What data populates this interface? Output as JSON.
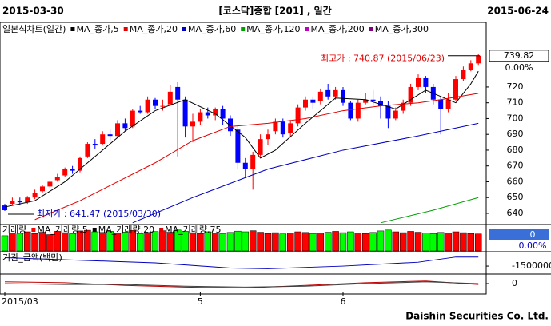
{
  "chart_data": {
    "type": "candlestick",
    "date_start": "2015-03-30",
    "title": "[코스닥]종합 [201] , 일간",
    "date_end": "2015-06-24",
    "chart_label": "일본식차트(일간)",
    "open": [
      645,
      646,
      648,
      647,
      650,
      654,
      657,
      661,
      664,
      668,
      667,
      676,
      684,
      684,
      690,
      689,
      697,
      695,
      705,
      704,
      712,
      708,
      709,
      720,
      712,
      695,
      698,
      704,
      702,
      706,
      700,
      693,
      672,
      668,
      677,
      687,
      692,
      698,
      691,
      697,
      707,
      712,
      711,
      718,
      714,
      718,
      710,
      700,
      710,
      712,
      711,
      708,
      700,
      705,
      710,
      720,
      726,
      720,
      712,
      706,
      712,
      725,
      731,
      735
    ],
    "high": [
      646,
      650,
      650,
      651,
      655,
      658,
      661,
      665,
      669,
      670,
      676,
      685,
      687,
      692,
      693,
      699,
      700,
      706,
      708,
      714,
      713,
      712,
      721,
      723,
      714,
      703,
      706,
      707,
      707,
      708,
      702,
      695,
      675,
      679,
      690,
      693,
      700,
      700,
      699,
      709,
      714,
      714,
      719,
      722,
      720,
      720,
      711,
      712,
      716,
      718,
      714,
      711,
      707,
      712,
      722,
      728,
      727,
      722,
      714,
      716,
      727,
      733,
      737,
      740.87
    ],
    "low": [
      641.47,
      645,
      645,
      646,
      649,
      653,
      656,
      660,
      663,
      665,
      666,
      675,
      681,
      683,
      686,
      688,
      692,
      694,
      703,
      703,
      706,
      705,
      708,
      676,
      688,
      685,
      696,
      700,
      699,
      696,
      689,
      668,
      663,
      655,
      676,
      683,
      690,
      688,
      688,
      695,
      705,
      706,
      709,
      712,
      712,
      708,
      699,
      698,
      709,
      708,
      700,
      694,
      699,
      703,
      708,
      718,
      716,
      709,
      690,
      704,
      711,
      724,
      730,
      734
    ],
    "close": [
      642,
      648,
      647,
      650,
      653,
      657,
      660,
      663,
      668,
      667,
      675,
      684,
      683,
      690,
      689,
      697,
      694,
      705,
      704,
      712,
      708,
      708,
      717,
      712,
      695,
      698,
      704,
      702,
      706,
      700,
      692,
      672,
      668,
      677,
      687,
      690,
      698,
      690,
      697,
      707,
      712,
      710,
      717,
      714,
      718,
      710,
      700,
      710,
      712,
      711,
      708,
      700,
      705,
      710,
      720,
      726,
      720,
      712,
      706,
      712,
      725,
      731,
      735,
      739.82
    ],
    "up_color": "#ff0000",
    "down_color": "#0000ff",
    "ylim": [
      633.4,
      754.9
    ],
    "yticks": [
      640,
      650,
      660,
      670,
      680,
      690,
      700,
      710,
      720
    ],
    "last_change": "0.00%",
    "high_annotation": "최고가 : 740.87 (2015/06/23)",
    "low_annotation": "최저가 : 641.47 (2015/03/30)",
    "ma_series": [
      {
        "name": "MA_종가,5",
        "color": "#000000",
        "x": [
          0,
          4,
          8,
          12,
          16,
          20,
          24,
          28,
          32,
          34,
          36,
          40,
          44,
          48,
          52,
          56,
          58,
          60,
          62,
          63
        ],
        "values": [
          644,
          648,
          660,
          676,
          692,
          705,
          712,
          703,
          688,
          675,
          680,
          697,
          713,
          712,
          706,
          718,
          714,
          710,
          722,
          730
        ]
      },
      {
        "name": "MA_종가,20",
        "color": "#e00000",
        "x": [
          4,
          10,
          15,
          20,
          25,
          30,
          35,
          40,
          45,
          50,
          55,
          58,
          63
        ],
        "values": [
          636,
          648,
          660,
          672,
          686,
          695,
          697,
          700,
          705,
          708,
          710,
          712,
          716
        ]
      },
      {
        "name": "MA_종가,60",
        "color": "#0000c0",
        "x": [
          17,
          25,
          35,
          45,
          55,
          63
        ],
        "values": [
          634,
          650,
          668,
          680,
          689,
          697
        ]
      },
      {
        "name": "MA_종가,120",
        "color": "#00a000",
        "x": [
          50,
          57,
          63
        ],
        "values": [
          634,
          642,
          650
        ]
      },
      {
        "name": "MA_종가,200",
        "color": "#c000c0",
        "x": [],
        "values": []
      },
      {
        "name": "MA_종가,300",
        "color": "#800080",
        "x": [],
        "values": []
      }
    ],
    "volume_label": "거래량",
    "volume": [
      70,
      82,
      78,
      88,
      80,
      86,
      75,
      90,
      84,
      79,
      92,
      95,
      88,
      85,
      90,
      83,
      87,
      94,
      80,
      85,
      89,
      93,
      86,
      96,
      90,
      84,
      80,
      88,
      82,
      79,
      85,
      91,
      88,
      93,
      86,
      80,
      84,
      78,
      82,
      88,
      85,
      80,
      83,
      86,
      90,
      84,
      88,
      82,
      80,
      85,
      92,
      96,
      88,
      84,
      90,
      86,
      82,
      80,
      85,
      83,
      88,
      84,
      80,
      78
    ],
    "volume_ylim": [
      0,
      110
    ],
    "volume_ma_names": [
      "MA_거래량,5",
      "MA_거래량,20",
      "MA_거래량,75"
    ],
    "volume_readout": 0,
    "volume_readout_pct": "0.00%",
    "volume_yticks": [],
    "inst_label": "기관_금액(백만)",
    "inst_x": [
      0,
      5,
      10,
      15,
      20,
      25,
      30,
      35,
      40,
      45,
      50,
      55,
      60,
      63
    ],
    "inst_values": [
      -200000,
      -400000,
      -600000,
      -800000,
      -1000000,
      -1400000,
      -1800000,
      -1900000,
      -1700000,
      -1500000,
      -1200000,
      -900000,
      -100000,
      -100000
    ],
    "inst_ylim": [
      -2600000,
      600000
    ],
    "inst_yticks": [
      -1500000
    ],
    "inst_color": "#0000c0",
    "osc_series": [
      {
        "name": "",
        "color": "#c00000",
        "x": [
          0,
          8,
          16,
          24,
          32,
          40,
          48,
          56,
          63
        ],
        "values": [
          20,
          10,
          -20,
          -40,
          -50,
          -20,
          10,
          30,
          -10
        ]
      },
      {
        "name": "",
        "color": "#404040",
        "x": [
          0,
          8,
          16,
          24,
          32,
          40,
          48,
          56,
          63
        ],
        "values": [
          0,
          -10,
          -10,
          -30,
          -40,
          -30,
          0,
          20,
          0
        ]
      }
    ],
    "osc_ylim": [
      -100,
      100
    ],
    "osc_yticks": [
      0
    ],
    "x_labels": [
      {
        "index": 0,
        "label": "2015/03"
      },
      {
        "index": 26,
        "label": "5"
      },
      {
        "index": 45,
        "label": "6"
      }
    ],
    "footer": "Daishin Securities Co. Ltd."
  }
}
